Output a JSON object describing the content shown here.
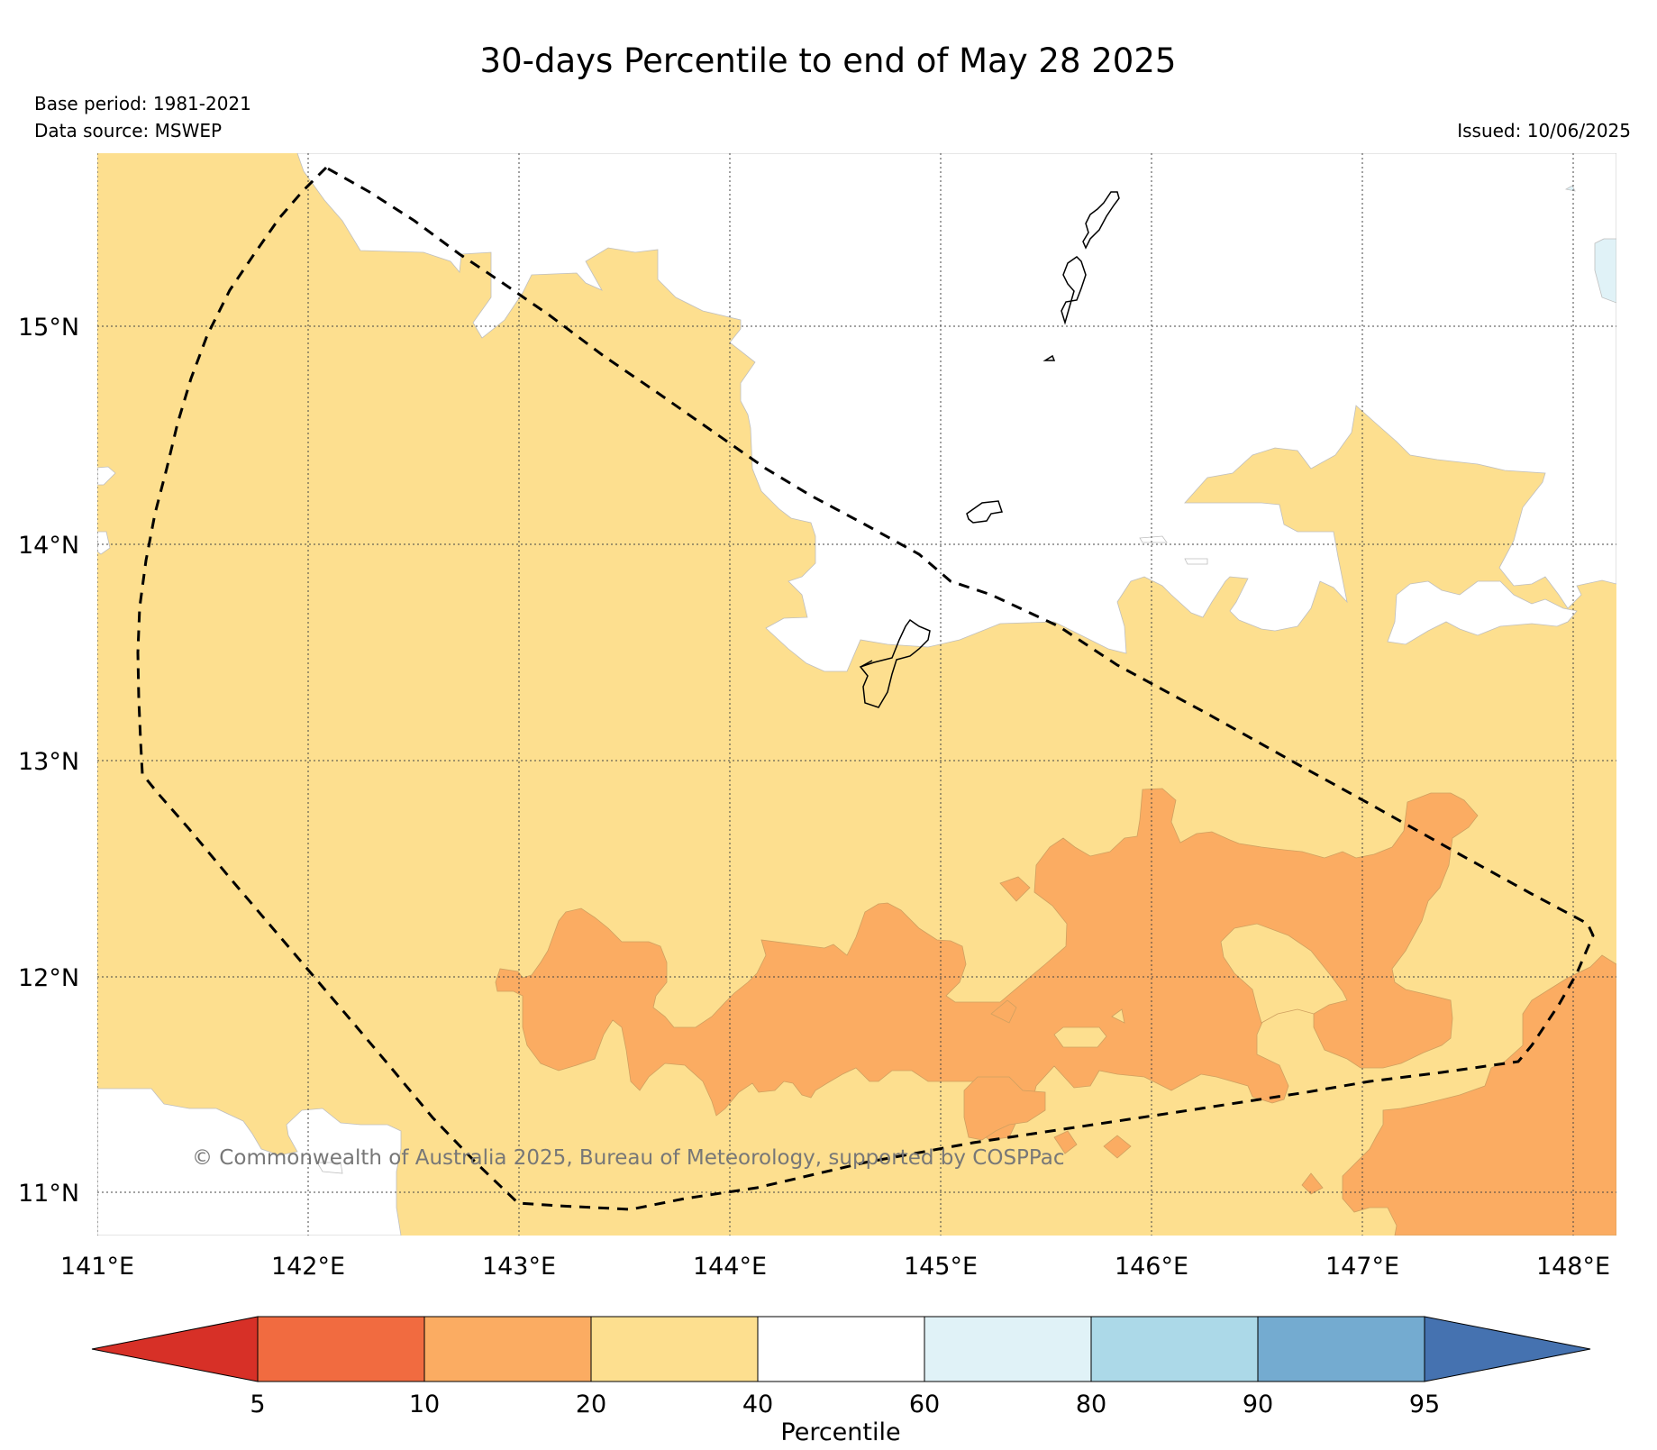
{
  "title": "30-days Percentile to end of May 28 2025",
  "base_period": "Base period: 1981-2021",
  "data_source": "Data source: MSWEP",
  "issued": "Issued: 10/06/2025",
  "copyright": "© Commonwealth of Australia 2025, Bureau of Meteorology, supported by COSPPac",
  "map": {
    "lon_labels": [
      "141°E",
      "142°E",
      "143°E",
      "144°E",
      "145°E",
      "146°E",
      "147°E",
      "148°E"
    ],
    "lat_labels": [
      "15°N",
      "14°N",
      "13°N",
      "12°N",
      "11°N"
    ]
  },
  "colorbar": {
    "label": "Percentile",
    "ticks": [
      "5",
      "10",
      "20",
      "40",
      "60",
      "80",
      "90",
      "95"
    ],
    "colors": [
      "#d73027",
      "#f16b40",
      "#fbac62",
      "#fddf8f",
      "#ffffff",
      "#e0f2f7",
      "#acd9e8",
      "#74abd0",
      "#4572b0"
    ]
  }
}
